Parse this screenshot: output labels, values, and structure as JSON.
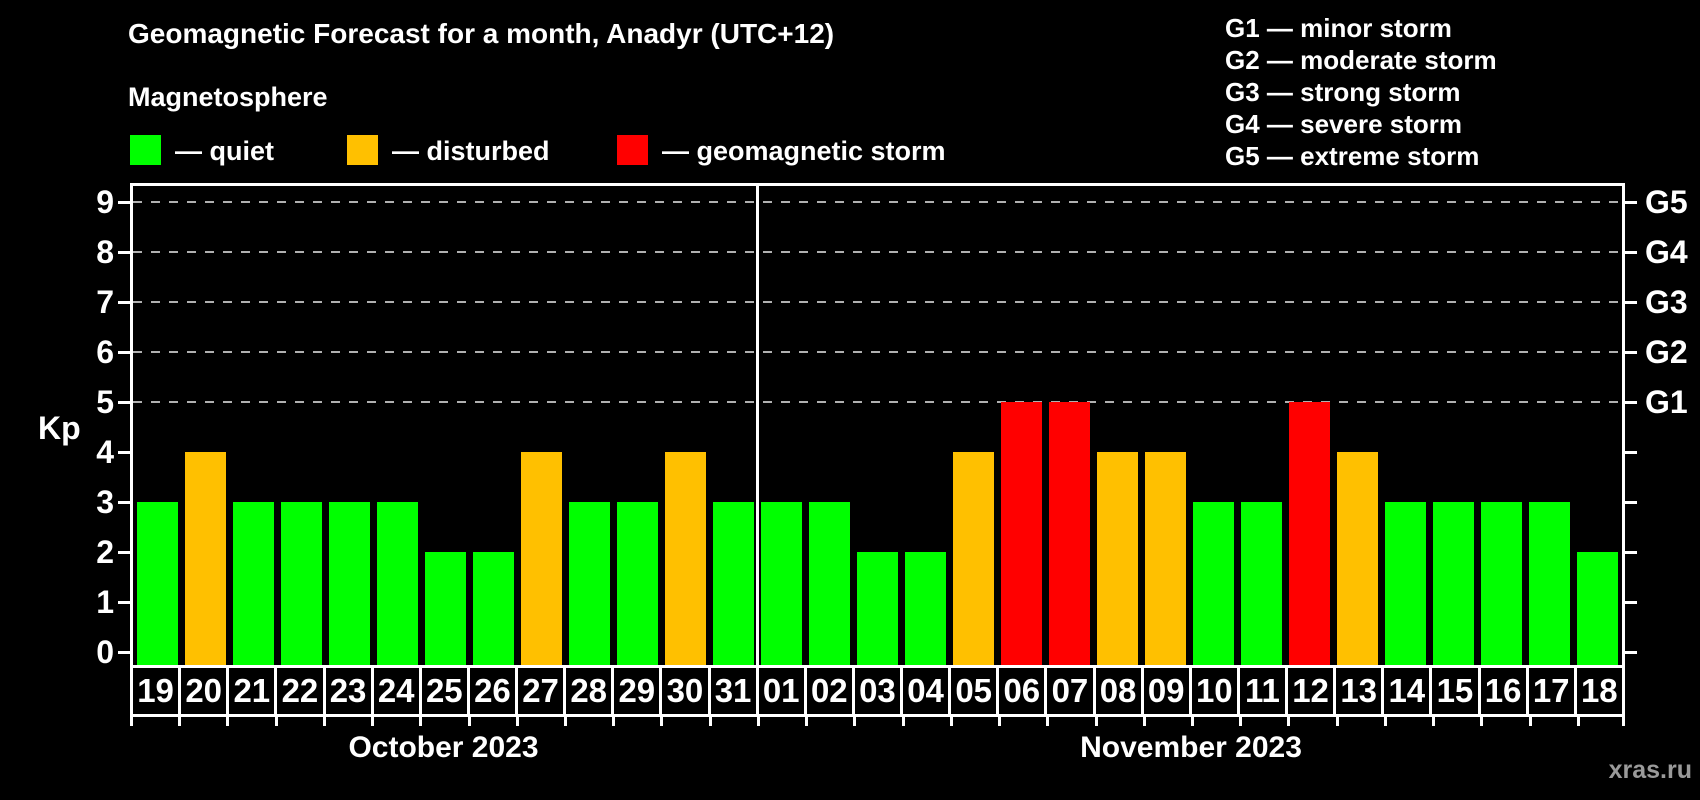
{
  "title": "Geomagnetic Forecast for a month, Anadyr (UTC+12)",
  "subtitle": "Magnetosphere",
  "watermark": "xras.ru",
  "axis": {
    "y_label": "Kp",
    "y_ticks": [
      0,
      1,
      2,
      3,
      4,
      5,
      6,
      7,
      8,
      9
    ],
    "g_labels": [
      {
        "label": "G1",
        "kp": 5
      },
      {
        "label": "G2",
        "kp": 6
      },
      {
        "label": "G3",
        "kp": 7
      },
      {
        "label": "G4",
        "kp": 8
      },
      {
        "label": "G5",
        "kp": 9
      }
    ]
  },
  "legend": {
    "items": [
      {
        "label": "— quiet",
        "state": "quiet"
      },
      {
        "label": "— disturbed",
        "state": "disturbed"
      },
      {
        "label": "— geomagnetic storm",
        "state": "storm"
      }
    ]
  },
  "state_colors": {
    "quiet": "#00ff00",
    "disturbed": "#ffc000",
    "storm": "#ff0000"
  },
  "storm_scale": [
    "G1 — minor storm",
    "G2 — moderate storm",
    "G3 — strong storm",
    "G4 — severe storm",
    "G5 — extreme storm"
  ],
  "months": [
    {
      "label": "October 2023",
      "days": [
        {
          "date": "19",
          "kp": 3,
          "state": "quiet"
        },
        {
          "date": "20",
          "kp": 4,
          "state": "disturbed"
        },
        {
          "date": "21",
          "kp": 3,
          "state": "quiet"
        },
        {
          "date": "22",
          "kp": 3,
          "state": "quiet"
        },
        {
          "date": "23",
          "kp": 3,
          "state": "quiet"
        },
        {
          "date": "24",
          "kp": 3,
          "state": "quiet"
        },
        {
          "date": "25",
          "kp": 2,
          "state": "quiet"
        },
        {
          "date": "26",
          "kp": 2,
          "state": "quiet"
        },
        {
          "date": "27",
          "kp": 4,
          "state": "disturbed"
        },
        {
          "date": "28",
          "kp": 3,
          "state": "quiet"
        },
        {
          "date": "29",
          "kp": 3,
          "state": "quiet"
        },
        {
          "date": "30",
          "kp": 4,
          "state": "disturbed"
        },
        {
          "date": "31",
          "kp": 3,
          "state": "quiet"
        }
      ]
    },
    {
      "label": "November 2023",
      "days": [
        {
          "date": "01",
          "kp": 3,
          "state": "quiet"
        },
        {
          "date": "02",
          "kp": 3,
          "state": "quiet"
        },
        {
          "date": "03",
          "kp": 2,
          "state": "quiet"
        },
        {
          "date": "04",
          "kp": 2,
          "state": "quiet"
        },
        {
          "date": "05",
          "kp": 4,
          "state": "disturbed"
        },
        {
          "date": "06",
          "kp": 5,
          "state": "storm"
        },
        {
          "date": "07",
          "kp": 5,
          "state": "storm"
        },
        {
          "date": "08",
          "kp": 4,
          "state": "disturbed"
        },
        {
          "date": "09",
          "kp": 4,
          "state": "disturbed"
        },
        {
          "date": "10",
          "kp": 3,
          "state": "quiet"
        },
        {
          "date": "11",
          "kp": 3,
          "state": "quiet"
        },
        {
          "date": "12",
          "kp": 5,
          "state": "storm"
        },
        {
          "date": "13",
          "kp": 4,
          "state": "disturbed"
        },
        {
          "date": "14",
          "kp": 3,
          "state": "quiet"
        },
        {
          "date": "15",
          "kp": 3,
          "state": "quiet"
        },
        {
          "date": "16",
          "kp": 3,
          "state": "quiet"
        },
        {
          "date": "17",
          "kp": 3,
          "state": "quiet"
        },
        {
          "date": "18",
          "kp": 2,
          "state": "quiet"
        }
      ]
    }
  ],
  "chart_data": {
    "type": "bar",
    "title": "Geomagnetic Forecast for a month, Anadyr (UTC+12)",
    "xlabel": "",
    "ylabel": "Kp",
    "ylim": [
      0,
      9
    ],
    "grid": "horizontal dashed lines at Kp 5,6,7,8,9 (G1–G5 levels)",
    "legend_position": "top-left (quiet/disturbed/storm) and top-right (G-scale)",
    "right_axis_labels": {
      "G1": 5,
      "G2": 6,
      "G3": 7,
      "G4": 8,
      "G5": 9
    },
    "categories": [
      "Oct 19",
      "Oct 20",
      "Oct 21",
      "Oct 22",
      "Oct 23",
      "Oct 24",
      "Oct 25",
      "Oct 26",
      "Oct 27",
      "Oct 28",
      "Oct 29",
      "Oct 30",
      "Oct 31",
      "Nov 01",
      "Nov 02",
      "Nov 03",
      "Nov 04",
      "Nov 05",
      "Nov 06",
      "Nov 07",
      "Nov 08",
      "Nov 09",
      "Nov 10",
      "Nov 11",
      "Nov 12",
      "Nov 13",
      "Nov 14",
      "Nov 15",
      "Nov 16",
      "Nov 17",
      "Nov 18"
    ],
    "series": [
      {
        "name": "Kp forecast",
        "values": [
          3,
          4,
          3,
          3,
          3,
          3,
          2,
          2,
          4,
          3,
          3,
          4,
          3,
          3,
          3,
          2,
          2,
          4,
          5,
          5,
          4,
          4,
          3,
          3,
          5,
          4,
          3,
          3,
          3,
          3,
          2
        ],
        "states": [
          "quiet",
          "disturbed",
          "quiet",
          "quiet",
          "quiet",
          "quiet",
          "quiet",
          "quiet",
          "disturbed",
          "quiet",
          "quiet",
          "disturbed",
          "quiet",
          "quiet",
          "quiet",
          "quiet",
          "quiet",
          "disturbed",
          "storm",
          "storm",
          "disturbed",
          "disturbed",
          "quiet",
          "quiet",
          "storm",
          "disturbed",
          "quiet",
          "quiet",
          "quiet",
          "quiet",
          "quiet"
        ]
      }
    ]
  }
}
